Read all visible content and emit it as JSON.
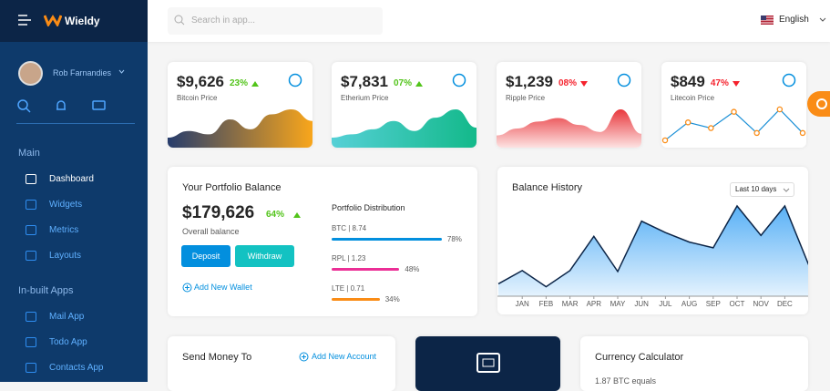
{
  "sidebar": {
    "brand": "Wieldy",
    "user": "Rob Farnandies",
    "sections": [
      {
        "title": "Main",
        "items": [
          "Dashboard",
          "Widgets",
          "Metrics",
          "Layouts"
        ]
      },
      {
        "title": "In-built Apps",
        "items": [
          "Mail App",
          "Todo App",
          "Contacts App"
        ]
      }
    ]
  },
  "topbar": {
    "search_placeholder": "Search in app...",
    "language": "English"
  },
  "price_cards": [
    {
      "value": "$9,626",
      "change": "23%",
      "trend": "up",
      "label": "Bitcoin Price",
      "chart": {
        "type": "area",
        "colors": [
          "#263c6c",
          "#f9a61b"
        ],
        "values": [
          12,
          20,
          16,
          34,
          22,
          40,
          46,
          32
        ]
      }
    },
    {
      "value": "$7,831",
      "change": "07%",
      "trend": "up",
      "label": "Etherium Price",
      "chart": {
        "type": "area",
        "colors": [
          "#55d0d6",
          "#13b98a"
        ],
        "values": [
          12,
          16,
          22,
          32,
          20,
          36,
          46,
          24
        ]
      }
    },
    {
      "value": "$1,239",
      "change": "08%",
      "trend": "down",
      "label": "Ripple Price",
      "chart": {
        "type": "area",
        "colors": [
          "#e8383d",
          "#fde2e2"
        ],
        "values": [
          14,
          22,
          30,
          34,
          26,
          18,
          44,
          16
        ]
      }
    },
    {
      "value": "$849",
      "change": "47%",
      "trend": "down",
      "label": "Litecoin Price",
      "chart": {
        "type": "line",
        "colors": [
          "#1a8fd6",
          "#fa8c16"
        ],
        "values": [
          9,
          31,
          24,
          44,
          18,
          47,
          18
        ]
      }
    }
  ],
  "portfolio": {
    "title": "Your Portfolio Balance",
    "balance": "$179,626",
    "change": "64%",
    "trend": "up",
    "subtitle": "Overall balance",
    "buttons": [
      "Deposit",
      "Withdraw"
    ],
    "link": "Add New Wallet",
    "distribution_title": "Portfolio Distribution",
    "distribution": [
      {
        "label": "BTC | 8.74",
        "pct": 78,
        "pct_label": "78%",
        "color": "#038fde"
      },
      {
        "label": "RPL | 1.23",
        "pct": 48,
        "pct_label": "48%",
        "color": "#eb2f96"
      },
      {
        "label": "LTE | 0.71",
        "pct": 34,
        "pct_label": "34%",
        "color": "#fa8c16"
      }
    ]
  },
  "balance_history": {
    "title": "Balance History",
    "range": "Last 10 days",
    "chart": {
      "type": "area",
      "categories": [
        null,
        "JAN",
        "FEB",
        "MAR",
        "APR",
        "MAY",
        "JUN",
        "JUL",
        "AUG",
        "SEP",
        "OCT",
        "NOV",
        "DEC",
        null
      ],
      "values": [
        13,
        27,
        10,
        27,
        63,
        26,
        79,
        67,
        57,
        51,
        95,
        64,
        95,
        33
      ],
      "line_color": "#0c2547",
      "fill_color": "#2196f3"
    }
  },
  "send_money": {
    "title": "Send Money To",
    "link": "Add New Account"
  },
  "currency_calculator": {
    "title": "Currency Calculator",
    "text": "1.87 BTC equals"
  }
}
